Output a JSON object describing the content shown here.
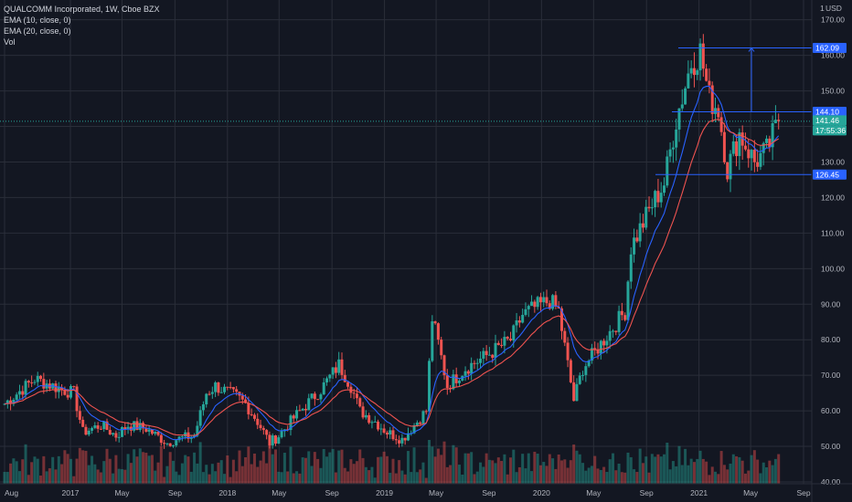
{
  "header": {
    "symbol_title": "QUALCOMM Incorporated, 1W, Cboe BZX",
    "indicators": [
      "EMA (10, close, 0)",
      "EMA (20, close, 0)",
      "Vol"
    ]
  },
  "axis": {
    "currency": "USD",
    "corner_mark": "1",
    "y_ticks": [
      "170.00",
      "160.00",
      "150.00",
      "140.00",
      "130.00",
      "120.00",
      "110.00",
      "100.00",
      "90.00",
      "80.00",
      "70.00",
      "60.00",
      "50.00",
      "40.00"
    ],
    "x_ticks": [
      "Aug",
      "2017",
      "May",
      "Sep",
      "2018",
      "May",
      "Sep",
      "2019",
      "May",
      "Sep",
      "2020",
      "May",
      "Sep",
      "2021",
      "May",
      "Sep"
    ]
  },
  "price_tags": [
    {
      "label": "162.09",
      "color": "#2962ff",
      "kind": "level"
    },
    {
      "label": "144.10",
      "color": "#2962ff",
      "kind": "level"
    },
    {
      "label": "141.46",
      "color": "#26a69a",
      "kind": "last"
    },
    {
      "label": "17:55:36",
      "color": "#26a69a",
      "kind": "countdown"
    },
    {
      "label": "126.45",
      "color": "#2962ff",
      "kind": "level"
    }
  ],
  "colors": {
    "background": "#131722",
    "grid": "#2a2e39",
    "up": "#26a69a",
    "down": "#ef5350",
    "ema10": "#2962ff",
    "ema20": "#ef5350",
    "level_line": "#2962ff"
  },
  "chart_data": {
    "type": "candlestick",
    "title": "QUALCOMM Incorporated, 1W, Cboe BZX",
    "interval": "1W",
    "ylim": [
      40,
      173
    ],
    "price_scale": "right",
    "grid": true,
    "horizontal_levels": [
      162.09,
      144.1,
      126.45
    ],
    "last_price": 141.46,
    "countdown": "17:55:36",
    "series": [
      {
        "name": "EMA (10, close, 0)",
        "type": "line"
      },
      {
        "name": "EMA (20, close, 0)",
        "type": "line"
      },
      {
        "name": "Vol",
        "type": "bar"
      }
    ],
    "anchors": [
      [
        "2016-08-01",
        62
      ],
      [
        "2016-10-10",
        69
      ],
      [
        "2016-12-12",
        66
      ],
      [
        "2017-01-09",
        65
      ],
      [
        "2017-01-30",
        54
      ],
      [
        "2017-03-13",
        56
      ],
      [
        "2017-04-17",
        53
      ],
      [
        "2017-05-15",
        56
      ],
      [
        "2017-06-26",
        55
      ],
      [
        "2017-08-14",
        51
      ],
      [
        "2017-09-04",
        52
      ],
      [
        "2017-10-16",
        53
      ],
      [
        "2017-11-13",
        65
      ],
      [
        "2017-12-04",
        67
      ],
      [
        "2018-01-22",
        64
      ],
      [
        "2018-02-12",
        62
      ],
      [
        "2018-03-12",
        57
      ],
      [
        "2018-04-09",
        51
      ],
      [
        "2018-04-30",
        53
      ],
      [
        "2018-06-04",
        58
      ],
      [
        "2018-08-06",
        66
      ],
      [
        "2018-09-17",
        73
      ],
      [
        "2018-10-15",
        67
      ],
      [
        "2018-11-05",
        60
      ],
      [
        "2018-12-10",
        57
      ],
      [
        "2019-01-07",
        54
      ],
      [
        "2019-02-11",
        52
      ],
      [
        "2019-03-11",
        56
      ],
      [
        "2019-04-08",
        60
      ],
      [
        "2019-04-22",
        86
      ],
      [
        "2019-05-06",
        79
      ],
      [
        "2019-05-27",
        67
      ],
      [
        "2019-07-08",
        72
      ],
      [
        "2019-08-19",
        75
      ],
      [
        "2019-10-21",
        80
      ],
      [
        "2019-11-18",
        87
      ],
      [
        "2019-12-16",
        89
      ],
      [
        "2020-01-20",
        91
      ],
      [
        "2020-02-10",
        88
      ],
      [
        "2020-02-24",
        78
      ],
      [
        "2020-03-16",
        63
      ],
      [
        "2020-04-06",
        72
      ],
      [
        "2020-05-25",
        80
      ],
      [
        "2020-07-13",
        88
      ],
      [
        "2020-07-27",
        106
      ],
      [
        "2020-09-14",
        118
      ],
      [
        "2020-10-12",
        124
      ],
      [
        "2020-11-09",
        142
      ],
      [
        "2020-12-14",
        158
      ],
      [
        "2021-01-04",
        161
      ],
      [
        "2021-01-25",
        148
      ],
      [
        "2021-02-15",
        145
      ],
      [
        "2021-03-08",
        128
      ],
      [
        "2021-04-05",
        138
      ],
      [
        "2021-05-10",
        130
      ],
      [
        "2021-06-07",
        133
      ],
      [
        "2021-07-05",
        141.46
      ]
    ],
    "x_ticks": [
      {
        "label": "Aug",
        "date": "2016-08-01"
      },
      {
        "label": "2017",
        "date": "2017-01-01"
      },
      {
        "label": "May",
        "date": "2017-05-01"
      },
      {
        "label": "Sep",
        "date": "2017-09-01"
      },
      {
        "label": "2018",
        "date": "2018-01-01"
      },
      {
        "label": "May",
        "date": "2018-05-01"
      },
      {
        "label": "Sep",
        "date": "2018-09-01"
      },
      {
        "label": "2019",
        "date": "2019-01-01"
      },
      {
        "label": "May",
        "date": "2019-05-01"
      },
      {
        "label": "Sep",
        "date": "2019-09-01"
      },
      {
        "label": "2020",
        "date": "2020-01-01"
      },
      {
        "label": "May",
        "date": "2020-05-01"
      },
      {
        "label": "Sep",
        "date": "2020-09-01"
      },
      {
        "label": "2021",
        "date": "2021-01-01"
      },
      {
        "label": "May",
        "date": "2021-05-01"
      },
      {
        "label": "Sep",
        "date": "2021-09-01"
      }
    ]
  }
}
